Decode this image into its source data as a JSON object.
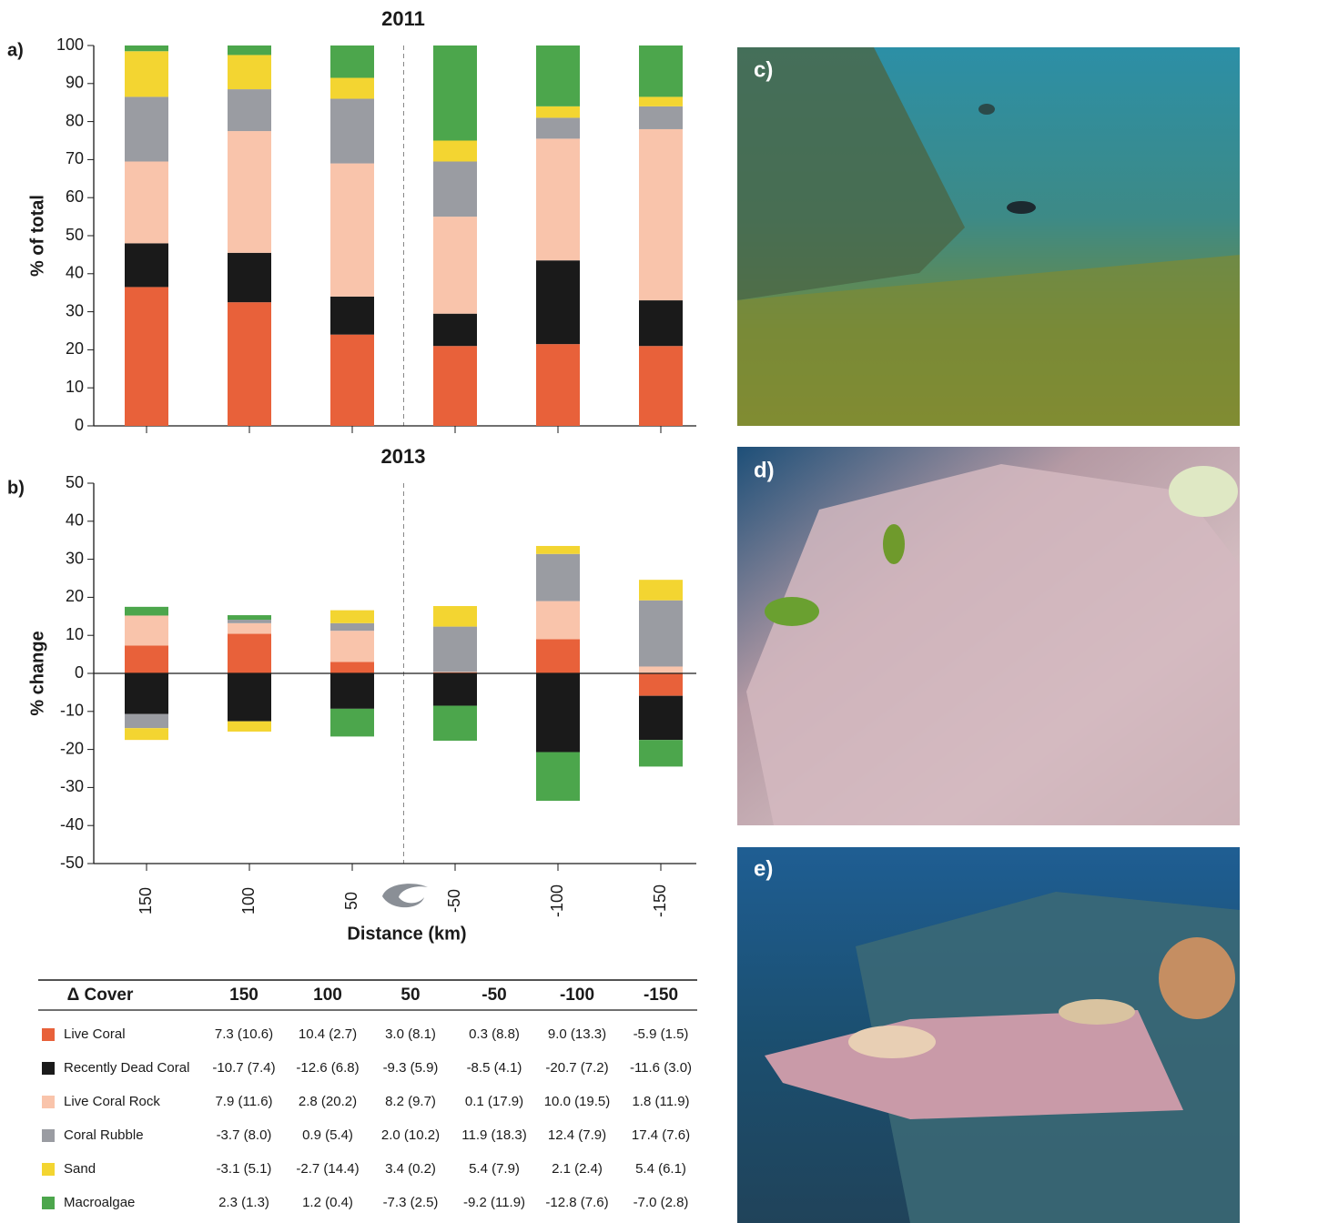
{
  "chart_data": [
    {
      "type": "bar",
      "stacked": true,
      "panel": "a)",
      "title": "2011",
      "ylabel": "% of total",
      "categories": [
        null,
        null,
        null,
        null,
        null,
        null
      ],
      "ylim": [
        0,
        100
      ],
      "yticks": [
        0,
        10,
        20,
        30,
        40,
        50,
        60,
        70,
        80,
        90,
        100
      ],
      "series": [
        {
          "name": "Live Coral",
          "color": "#e8613a",
          "values": [
            36.5,
            32.5,
            24,
            21,
            21.5,
            21
          ]
        },
        {
          "name": "Recently Dead Coral",
          "color": "#1a1a1a",
          "values": [
            11.5,
            13,
            10,
            8.5,
            22,
            12
          ]
        },
        {
          "name": "Live Coral Rock",
          "color": "#f9c4ab",
          "values": [
            21.5,
            32,
            35,
            25.5,
            32,
            45
          ]
        },
        {
          "name": "Coral Rubble",
          "color": "#9a9ca2",
          "values": [
            17,
            11,
            17,
            14.5,
            5.5,
            6
          ]
        },
        {
          "name": "Sand",
          "color": "#f3d531",
          "values": [
            12,
            9,
            5.5,
            5.5,
            3,
            2.5
          ]
        },
        {
          "name": "Macroalgae",
          "color": "#4ca64c",
          "values": [
            1.5,
            2.5,
            8.5,
            25,
            16,
            13.5
          ]
        }
      ]
    },
    {
      "type": "bar",
      "stacked": true,
      "panel": "b)",
      "title": "2013",
      "ylabel": "% change",
      "xlabel": "Distance (km)",
      "categories": [
        "150",
        "100",
        "50",
        "-50",
        "-100",
        "-150"
      ],
      "ylim": [
        -50,
        50
      ],
      "yticks": [
        -50,
        -40,
        -30,
        -20,
        -10,
        0,
        10,
        20,
        30,
        40,
        50
      ],
      "series": [
        {
          "name": "Live Coral",
          "color": "#e8613a",
          "values": [
            7.3,
            10.4,
            3.0,
            0.3,
            9.0,
            -5.9
          ]
        },
        {
          "name": "Recently Dead Coral",
          "color": "#1a1a1a",
          "values": [
            -10.7,
            -12.6,
            -9.3,
            -8.5,
            -20.7,
            -11.6
          ]
        },
        {
          "name": "Live Coral Rock",
          "color": "#f9c4ab",
          "values": [
            7.9,
            2.8,
            8.2,
            0.1,
            10.0,
            1.8
          ]
        },
        {
          "name": "Coral Rubble",
          "color": "#9a9ca2",
          "values": [
            -3.7,
            0.9,
            2.0,
            11.9,
            12.4,
            17.4
          ]
        },
        {
          "name": "Sand",
          "color": "#f3d531",
          "values": [
            -3.1,
            -2.7,
            3.4,
            5.4,
            2.1,
            5.4
          ]
        },
        {
          "name": "Macroalgae",
          "color": "#4ca64c",
          "values": [
            2.3,
            1.2,
            -7.3,
            -9.2,
            -12.8,
            -7.0
          ]
        }
      ]
    }
  ],
  "table": {
    "header": [
      "Δ Cover",
      "150",
      "100",
      "50",
      "-50",
      "-100",
      "-150"
    ],
    "rows": [
      [
        "7.3 (10.6)",
        "10.4 (2.7)",
        "3.0 (8.1)",
        "0.3 (8.8)",
        "9.0 (13.3)",
        "-5.9 (1.5)"
      ],
      [
        "-10.7 (7.4)",
        "-12.6 (6.8)",
        "-9.3 (5.9)",
        "-8.5 (4.1)",
        "-20.7 (7.2)",
        "-11.6 (3.0)"
      ],
      [
        "7.9 (11.6)",
        "2.8 (20.2)",
        "8.2 (9.7)",
        "0.1 (17.9)",
        "10.0 (19.5)",
        "1.8 (11.9)"
      ],
      [
        "-3.7 (8.0)",
        "0.9 (5.4)",
        "2.0 (10.2)",
        "11.9 (18.3)",
        "12.4 (7.9)",
        "17.4 (7.6)"
      ],
      [
        "-3.1 (5.1)",
        "-2.7 (14.4)",
        "3.4 (0.2)",
        "5.4 (7.9)",
        "2.1 (2.4)",
        "5.4 (6.1)"
      ],
      [
        "2.3 (1.3)",
        "1.2 (0.4)",
        "-7.3 (2.5)",
        "-9.2 (11.9)",
        "-12.8 (7.6)",
        "-7.0 (2.8)"
      ]
    ]
  },
  "panels": [
    "c)",
    "d)",
    "e)"
  ]
}
